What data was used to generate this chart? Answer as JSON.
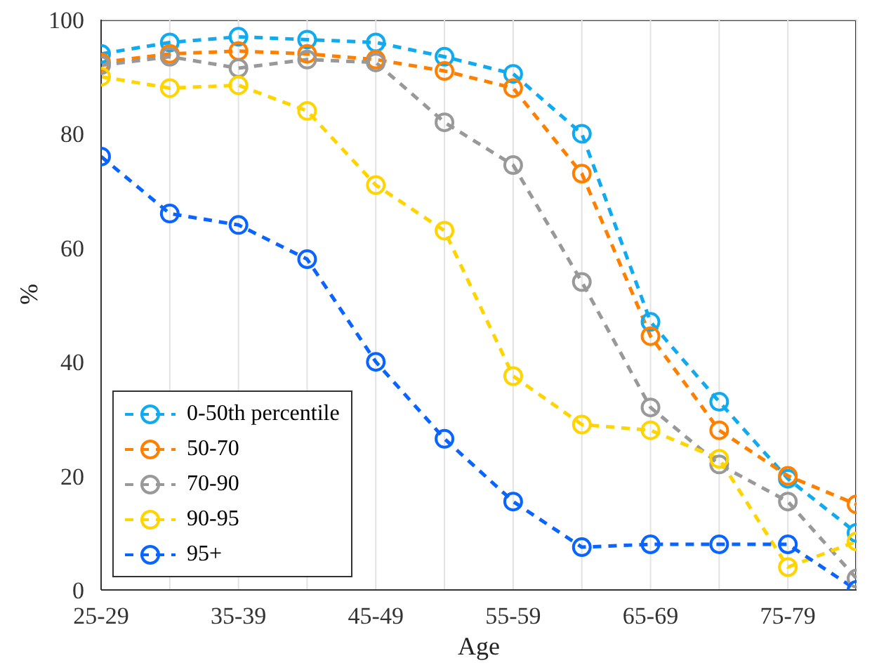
{
  "chart_data": {
    "type": "line",
    "xlabel": "Age",
    "ylabel": "%",
    "categories": [
      "25-29",
      null,
      "35-39",
      null,
      "45-49",
      null,
      "55-59",
      null,
      "65-69",
      null,
      "75-79",
      null
    ],
    "series": [
      {
        "name": "0-50th percentile",
        "color": "#10aaf0",
        "values": [
          94,
          96,
          97,
          96.5,
          96,
          93.5,
          90.5,
          80,
          47,
          33,
          19.5,
          10
        ]
      },
      {
        "name": "50-70",
        "color": "#ff8000",
        "values": [
          92.5,
          94,
          94.5,
          94,
          93,
          91,
          88,
          73,
          44.5,
          28,
          20,
          15
        ]
      },
      {
        "name": "70-90",
        "color": "#999999",
        "values": [
          92,
          93.5,
          91.5,
          93,
          92.5,
          82,
          74.5,
          54,
          32,
          22,
          15.5,
          2
        ]
      },
      {
        "name": "90-95",
        "color": "#ffd400",
        "values": [
          90,
          88,
          88.5,
          84,
          71,
          63,
          37.5,
          29,
          28,
          23,
          4,
          8.5
        ]
      },
      {
        "name": "95+",
        "color": "#0a64ff",
        "values": [
          76,
          66,
          64,
          58,
          40,
          26.5,
          15.5,
          7.5,
          8,
          8,
          8,
          0
        ]
      }
    ],
    "ylim": [
      0,
      100
    ],
    "yticks": [
      0,
      20,
      40,
      60,
      80,
      100
    ],
    "grid": true,
    "legend": "bottom left",
    "marker": "circle",
    "line_style": "dashed"
  }
}
